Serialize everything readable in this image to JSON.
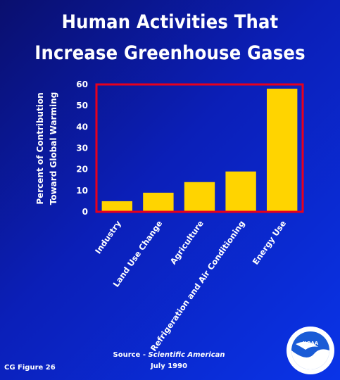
{
  "title_line1": "Human Activities That",
  "title_line2": "Increase Greenhouse Gases",
  "chart_data": {
    "type": "bar",
    "categories": [
      "Industry",
      "Land Use Change",
      "Agriculture",
      "Refrigeration and Air Conditioning",
      "Energy Use"
    ],
    "values": [
      5,
      9,
      14,
      19,
      58
    ],
    "ylabel_line1": "Percent of Contribution",
    "ylabel_line2": "Toward Global Warming",
    "ylim": [
      0,
      60
    ],
    "yticks": [
      0,
      10,
      20,
      30,
      40,
      50,
      60
    ],
    "grid": false,
    "bar_color": "#ffd400",
    "frame_color": "#e8001c"
  },
  "source_line1": "Source - ",
  "source_italic": "Scientific American",
  "source_line2": "July 1990",
  "figure_label": "CG Figure 26",
  "logo_text": "NOAA"
}
